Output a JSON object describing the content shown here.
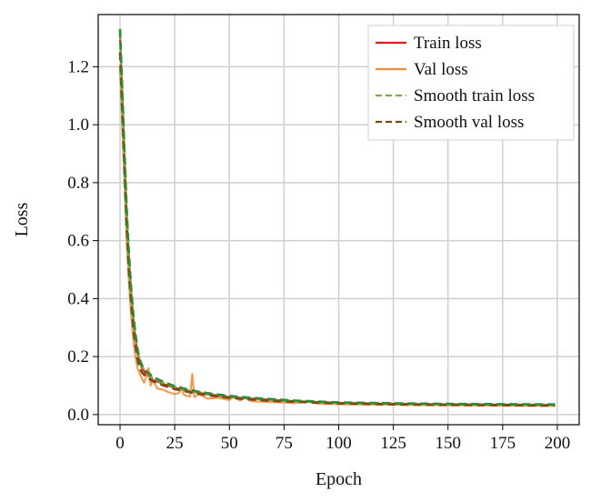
{
  "chart_data": {
    "type": "line",
    "title": "",
    "xlabel": "Epoch",
    "ylabel": "Loss",
    "xlim": [
      -10,
      210
    ],
    "ylim": [
      -0.035,
      1.38
    ],
    "xticks": [
      0,
      25,
      50,
      75,
      100,
      125,
      150,
      175,
      200
    ],
    "yticks": [
      0.0,
      0.2,
      0.4,
      0.6,
      0.8,
      1.0,
      1.2
    ],
    "xtick_labels": [
      "0",
      "25",
      "50",
      "75",
      "100",
      "125",
      "150",
      "175",
      "200"
    ],
    "ytick_labels": [
      "0.0",
      "0.2",
      "0.4",
      "0.6",
      "0.8",
      "1.0",
      "1.2"
    ],
    "grid": true,
    "legend_position": "top-right",
    "series": [
      {
        "name": "Train loss",
        "color": "#e41a1c",
        "dash": "solid",
        "x": [
          0,
          1,
          2,
          3,
          4,
          5,
          6,
          7,
          8,
          9,
          10,
          12,
          15,
          20,
          25,
          30,
          35,
          40,
          45,
          50,
          60,
          70,
          80,
          90,
          100,
          125,
          150,
          175,
          199
        ],
        "y": [
          1.31,
          1.1,
          0.88,
          0.68,
          0.53,
          0.42,
          0.33,
          0.26,
          0.21,
          0.18,
          0.16,
          0.14,
          0.12,
          0.105,
          0.092,
          0.083,
          0.076,
          0.07,
          0.065,
          0.06,
          0.055,
          0.05,
          0.046,
          0.043,
          0.04,
          0.037,
          0.035,
          0.034,
          0.033
        ]
      },
      {
        "name": "Val loss",
        "color": "#f08a3c",
        "dash": "solid",
        "x": [
          0,
          1,
          2,
          3,
          4,
          5,
          6,
          7,
          8,
          9,
          10,
          11,
          12,
          13,
          14,
          15,
          17,
          20,
          22,
          25,
          27,
          28,
          29,
          30,
          32,
          33,
          34,
          36,
          40,
          45,
          50,
          52,
          55,
          57,
          60,
          70,
          80,
          88,
          90,
          100,
          125,
          150,
          175,
          199
        ],
        "y": [
          1.2,
          1.0,
          0.8,
          0.6,
          0.46,
          0.35,
          0.26,
          0.2,
          0.16,
          0.14,
          0.125,
          0.11,
          0.13,
          0.16,
          0.1,
          0.12,
          0.09,
          0.085,
          0.078,
          0.07,
          0.075,
          0.095,
          0.07,
          0.065,
          0.062,
          0.14,
          0.06,
          0.07,
          0.055,
          0.058,
          0.05,
          0.062,
          0.048,
          0.058,
          0.046,
          0.043,
          0.04,
          0.046,
          0.038,
          0.036,
          0.034,
          0.032,
          0.031,
          0.03
        ]
      },
      {
        "name": "Smooth train loss",
        "color": "#7fa84a",
        "dash": "dashed",
        "x": [
          0,
          1,
          2,
          3,
          4,
          5,
          6,
          7,
          8,
          9,
          10,
          12,
          15,
          20,
          25,
          30,
          35,
          40,
          45,
          50,
          60,
          70,
          80,
          90,
          100,
          125,
          150,
          175,
          199
        ],
        "y": [
          1.32,
          1.12,
          0.9,
          0.7,
          0.55,
          0.43,
          0.34,
          0.27,
          0.22,
          0.185,
          0.165,
          0.145,
          0.125,
          0.108,
          0.095,
          0.085,
          0.078,
          0.072,
          0.067,
          0.062,
          0.056,
          0.051,
          0.047,
          0.044,
          0.041,
          0.038,
          0.036,
          0.035,
          0.034
        ]
      },
      {
        "name": "Smooth val loss",
        "color": "#7a4a14",
        "dash": "dashed",
        "x": [
          0,
          1,
          2,
          3,
          4,
          5,
          6,
          7,
          8,
          9,
          10,
          12,
          15,
          20,
          25,
          30,
          35,
          40,
          45,
          50,
          60,
          70,
          80,
          90,
          100,
          125,
          150,
          175,
          199
        ],
        "y": [
          1.25,
          1.05,
          0.85,
          0.65,
          0.5,
          0.39,
          0.3,
          0.24,
          0.19,
          0.16,
          0.145,
          0.13,
          0.115,
          0.1,
          0.088,
          0.08,
          0.073,
          0.067,
          0.062,
          0.058,
          0.052,
          0.047,
          0.044,
          0.041,
          0.038,
          0.035,
          0.033,
          0.032,
          0.031
        ]
      },
      {
        "name": "",
        "color": "#2e8b2e",
        "dash": "dashed",
        "x": [
          0,
          1,
          2,
          3,
          4,
          5,
          6,
          7,
          8,
          9,
          10,
          12,
          15,
          20,
          25,
          30,
          35,
          40,
          45,
          50,
          60,
          70,
          80,
          90,
          100,
          125,
          150,
          175,
          199
        ],
        "y": [
          1.33,
          1.13,
          0.91,
          0.71,
          0.56,
          0.44,
          0.35,
          0.28,
          0.225,
          0.19,
          0.17,
          0.15,
          0.13,
          0.112,
          0.098,
          0.088,
          0.08,
          0.074,
          0.069,
          0.064,
          0.058,
          0.053,
          0.048,
          0.045,
          0.042,
          0.039,
          0.037,
          0.036,
          0.035
        ]
      }
    ]
  }
}
